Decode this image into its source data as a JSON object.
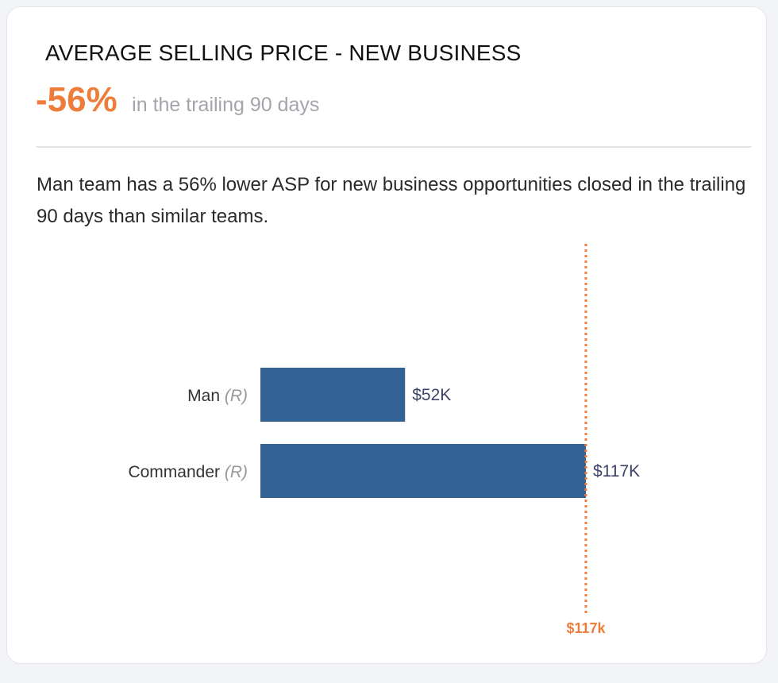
{
  "card": {
    "title": "AVERAGE SELLING PRICE - NEW BUSINESS",
    "metric": "-56%",
    "metric_caption": "in the trailing 90 days",
    "description": "Man team has a 56% lower ASP for new business opportunities closed in the trailing 90 days than similar teams."
  },
  "chart_data": {
    "type": "bar",
    "orientation": "horizontal",
    "categories": [
      {
        "name": "Man",
        "suffix": "(R)"
      },
      {
        "name": "Commander",
        "suffix": "(R)"
      }
    ],
    "values": [
      52,
      117
    ],
    "value_labels": [
      "$52K",
      "$117K"
    ],
    "unit": "$K",
    "xlim": [
      0,
      117
    ],
    "reference_line": {
      "value": 117,
      "label": "$117k",
      "style": "dotted"
    },
    "grid": false,
    "colors": {
      "bar": "#336295",
      "reference": "#ee7d3b",
      "value_label": "#3e4266",
      "category_label": "#333333",
      "suffix": "#999999"
    }
  }
}
